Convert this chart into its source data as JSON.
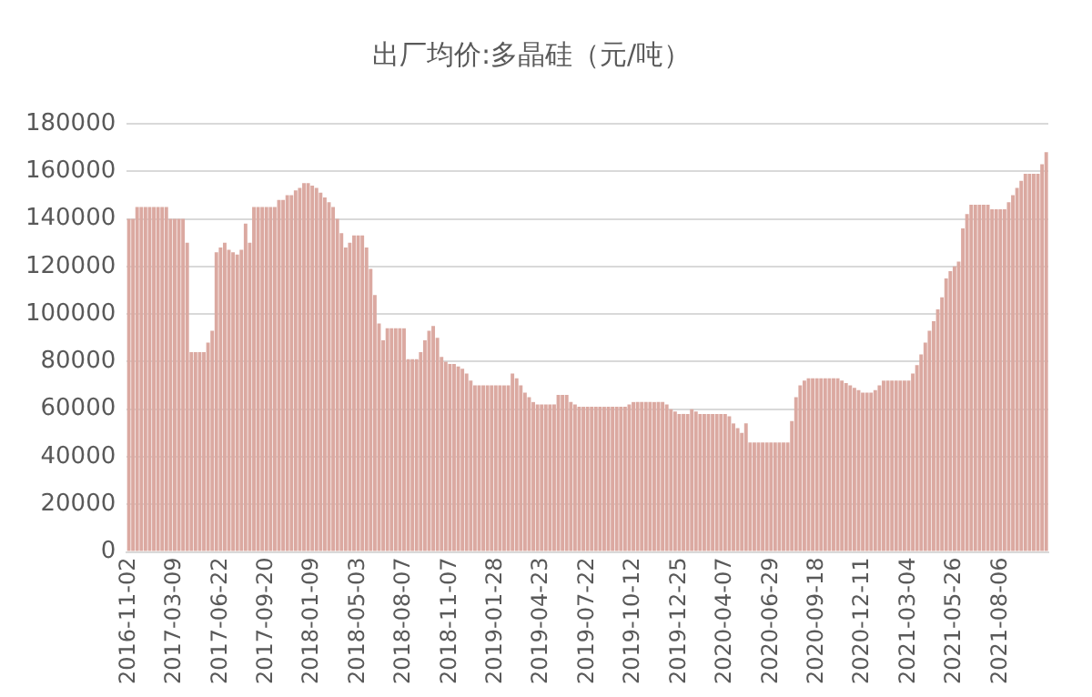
{
  "chart_data": {
    "type": "bar",
    "title": "出厂均价:多晶硅（元/吨）",
    "categories": [
      "2016-11-02",
      null,
      null,
      null,
      null,
      null,
      null,
      null,
      null,
      null,
      null,
      "2017-03-09",
      null,
      null,
      null,
      null,
      null,
      null,
      null,
      null,
      null,
      null,
      "2017-06-22",
      null,
      null,
      null,
      null,
      null,
      null,
      null,
      null,
      null,
      null,
      "2017-09-20",
      null,
      null,
      null,
      null,
      null,
      null,
      null,
      null,
      null,
      null,
      "2018-01-09",
      null,
      null,
      null,
      null,
      null,
      null,
      null,
      null,
      null,
      null,
      "2018-05-03",
      null,
      null,
      null,
      null,
      null,
      null,
      null,
      null,
      null,
      null,
      "2018-08-07",
      null,
      null,
      null,
      null,
      null,
      null,
      null,
      null,
      null,
      null,
      "2018-11-07",
      null,
      null,
      null,
      null,
      null,
      null,
      null,
      null,
      null,
      null,
      "2019-01-28",
      null,
      null,
      null,
      null,
      null,
      null,
      null,
      null,
      null,
      null,
      "2019-04-23",
      null,
      null,
      null,
      null,
      null,
      null,
      null,
      null,
      null,
      null,
      "2019-07-22",
      null,
      null,
      null,
      null,
      null,
      null,
      null,
      null,
      null,
      null,
      "2019-10-12",
      null,
      null,
      null,
      null,
      null,
      null,
      null,
      null,
      null,
      null,
      "2019-12-25",
      null,
      null,
      null,
      null,
      null,
      null,
      null,
      null,
      null,
      null,
      "2020-04-07",
      null,
      null,
      null,
      null,
      null,
      null,
      null,
      null,
      null,
      null,
      "2020-06-29",
      null,
      null,
      null,
      null,
      null,
      null,
      null,
      null,
      null,
      null,
      "2020-09-18",
      null,
      null,
      null,
      null,
      null,
      null,
      null,
      null,
      null,
      null,
      "2020-12-11",
      null,
      null,
      null,
      null,
      null,
      null,
      null,
      null,
      null,
      null,
      "2021-03-04",
      null,
      null,
      null,
      null,
      null,
      null,
      null,
      null,
      null,
      null,
      "2021-05-26",
      null,
      null,
      null,
      null,
      null,
      null,
      null,
      null,
      null,
      null,
      "2021-08-06",
      null,
      null,
      null,
      null,
      null,
      null,
      null,
      null,
      null,
      null,
      null
    ],
    "values": [
      140000,
      140000,
      145000,
      145000,
      145000,
      145000,
      145000,
      145000,
      145000,
      145000,
      140000,
      140000,
      140000,
      140000,
      130000,
      84000,
      84000,
      84000,
      84000,
      88000,
      93000,
      126000,
      128000,
      130000,
      127000,
      126000,
      125000,
      127000,
      138000,
      130000,
      145000,
      145000,
      145000,
      145000,
      145000,
      145000,
      148000,
      148000,
      150000,
      150000,
      152000,
      153000,
      155000,
      155000,
      154000,
      153000,
      151000,
      149000,
      147000,
      145000,
      140000,
      134000,
      128000,
      130000,
      133000,
      133000,
      133000,
      128000,
      119000,
      108000,
      96000,
      89000,
      94000,
      94000,
      94000,
      94000,
      94000,
      81000,
      81000,
      81000,
      84000,
      89000,
      93000,
      95000,
      90000,
      82000,
      80000,
      79000,
      79000,
      78000,
      77000,
      75000,
      72000,
      70000,
      70000,
      70000,
      70000,
      70000,
      70000,
      70000,
      70000,
      70000,
      75000,
      73000,
      70000,
      67000,
      65000,
      63000,
      62000,
      62000,
      62000,
      62000,
      62000,
      66000,
      66000,
      66000,
      63000,
      62000,
      61000,
      61000,
      61000,
      61000,
      61000,
      61000,
      61000,
      61000,
      61000,
      61000,
      61000,
      61000,
      62000,
      63000,
      63000,
      63000,
      63000,
      63000,
      63000,
      63000,
      63000,
      62000,
      60000,
      59000,
      58000,
      58000,
      58000,
      60000,
      59000,
      58000,
      58000,
      58000,
      58000,
      58000,
      58000,
      58000,
      57000,
      54000,
      52000,
      50000,
      54000,
      46000,
      46000,
      46000,
      46000,
      46000,
      46000,
      46000,
      46000,
      46000,
      46000,
      55000,
      65000,
      70000,
      72000,
      73000,
      73000,
      73000,
      73000,
      73000,
      73000,
      73000,
      73000,
      72000,
      71000,
      70000,
      69000,
      68000,
      67000,
      67000,
      67000,
      68000,
      70000,
      72000,
      72000,
      72000,
      72000,
      72000,
      72000,
      72000,
      75000,
      78500,
      83000,
      88000,
      93000,
      97000,
      102000,
      107000,
      115000,
      118000,
      120000,
      122000,
      136000,
      142000,
      146000,
      146000,
      146000,
      146000,
      146000,
      144000,
      144000,
      144000,
      144000,
      147000,
      150000,
      153000,
      156000,
      159000,
      159000,
      159000,
      159000,
      163000,
      168000
    ],
    "color": "#dba9a1",
    "ylim": [
      0,
      180000
    ],
    "yticks": [
      0,
      20000,
      40000,
      60000,
      80000,
      100000,
      120000,
      140000,
      160000,
      180000
    ],
    "grid": "y"
  }
}
